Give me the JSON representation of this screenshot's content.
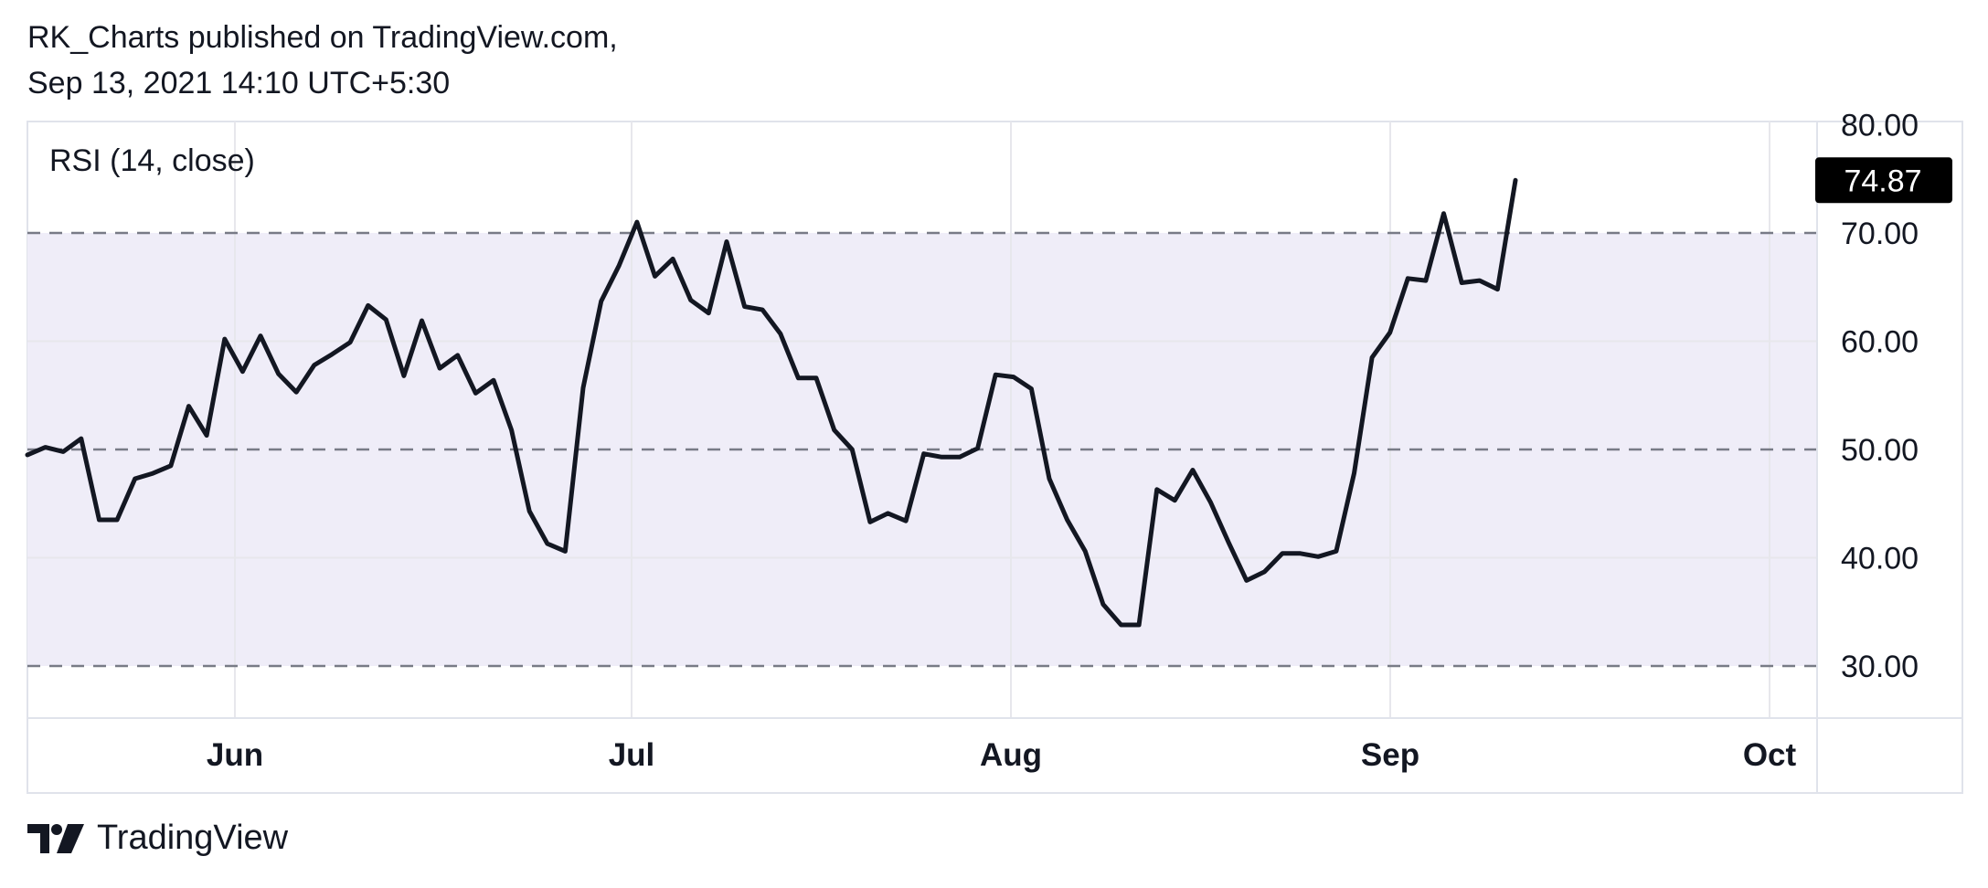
{
  "header": {
    "publisher_line": "RK_Charts published on TradingView.com,",
    "date_line": "Sep 13, 2021 14:10 UTC+5:30"
  },
  "footer": {
    "brand": "TradingView",
    "logo_icon": "tradingview-logo-icon"
  },
  "colors": {
    "line": "#131722",
    "band": "#efedf8",
    "grid": "#e7e7ec",
    "dash": "#787b86",
    "badge_bg": "#000000",
    "badge_fg": "#ffffff"
  },
  "chart_data": {
    "type": "line",
    "title": "RSI (14, close)",
    "x_ticks": [
      "Jun",
      "Jul",
      "Aug",
      "Sep",
      "Oct"
    ],
    "y_ticks": [
      "30.00",
      "40.00",
      "50.00",
      "60.00",
      "70.00",
      "80.00"
    ],
    "ylim": [
      25,
      80
    ],
    "reference_lines": [
      30,
      50,
      70
    ],
    "shaded_band": [
      30,
      70
    ],
    "last_value_label": "74.87",
    "grid": true,
    "series": [
      {
        "values": [
          49.5,
          50.2,
          49.8,
          51.0,
          43.5,
          43.5,
          47.3,
          47.8,
          48.5,
          54.0,
          51.3,
          60.2,
          57.2,
          60.5,
          57.0,
          55.3,
          57.8,
          58.8,
          59.9,
          63.3,
          62.0,
          56.8,
          61.9,
          57.5,
          58.7,
          55.2,
          56.4,
          51.8,
          44.3,
          41.3,
          40.6,
          55.7,
          63.7,
          67.0,
          71.0,
          66.0,
          67.6,
          63.8,
          62.6,
          69.2,
          63.2,
          62.9,
          60.7,
          56.6,
          56.6,
          51.8,
          50.0,
          43.3,
          44.1,
          43.4,
          49.6,
          49.3,
          49.3,
          50.1,
          56.9,
          56.7,
          55.6,
          47.3,
          43.5,
          40.6,
          35.7,
          33.8,
          33.8,
          46.3,
          45.3,
          48.1,
          45.1,
          41.4,
          37.9,
          38.7,
          40.4,
          40.4,
          40.1,
          40.6,
          47.8,
          58.5,
          60.8,
          65.8,
          65.6,
          71.8,
          65.4,
          65.6,
          64.8,
          74.87
        ]
      }
    ]
  }
}
